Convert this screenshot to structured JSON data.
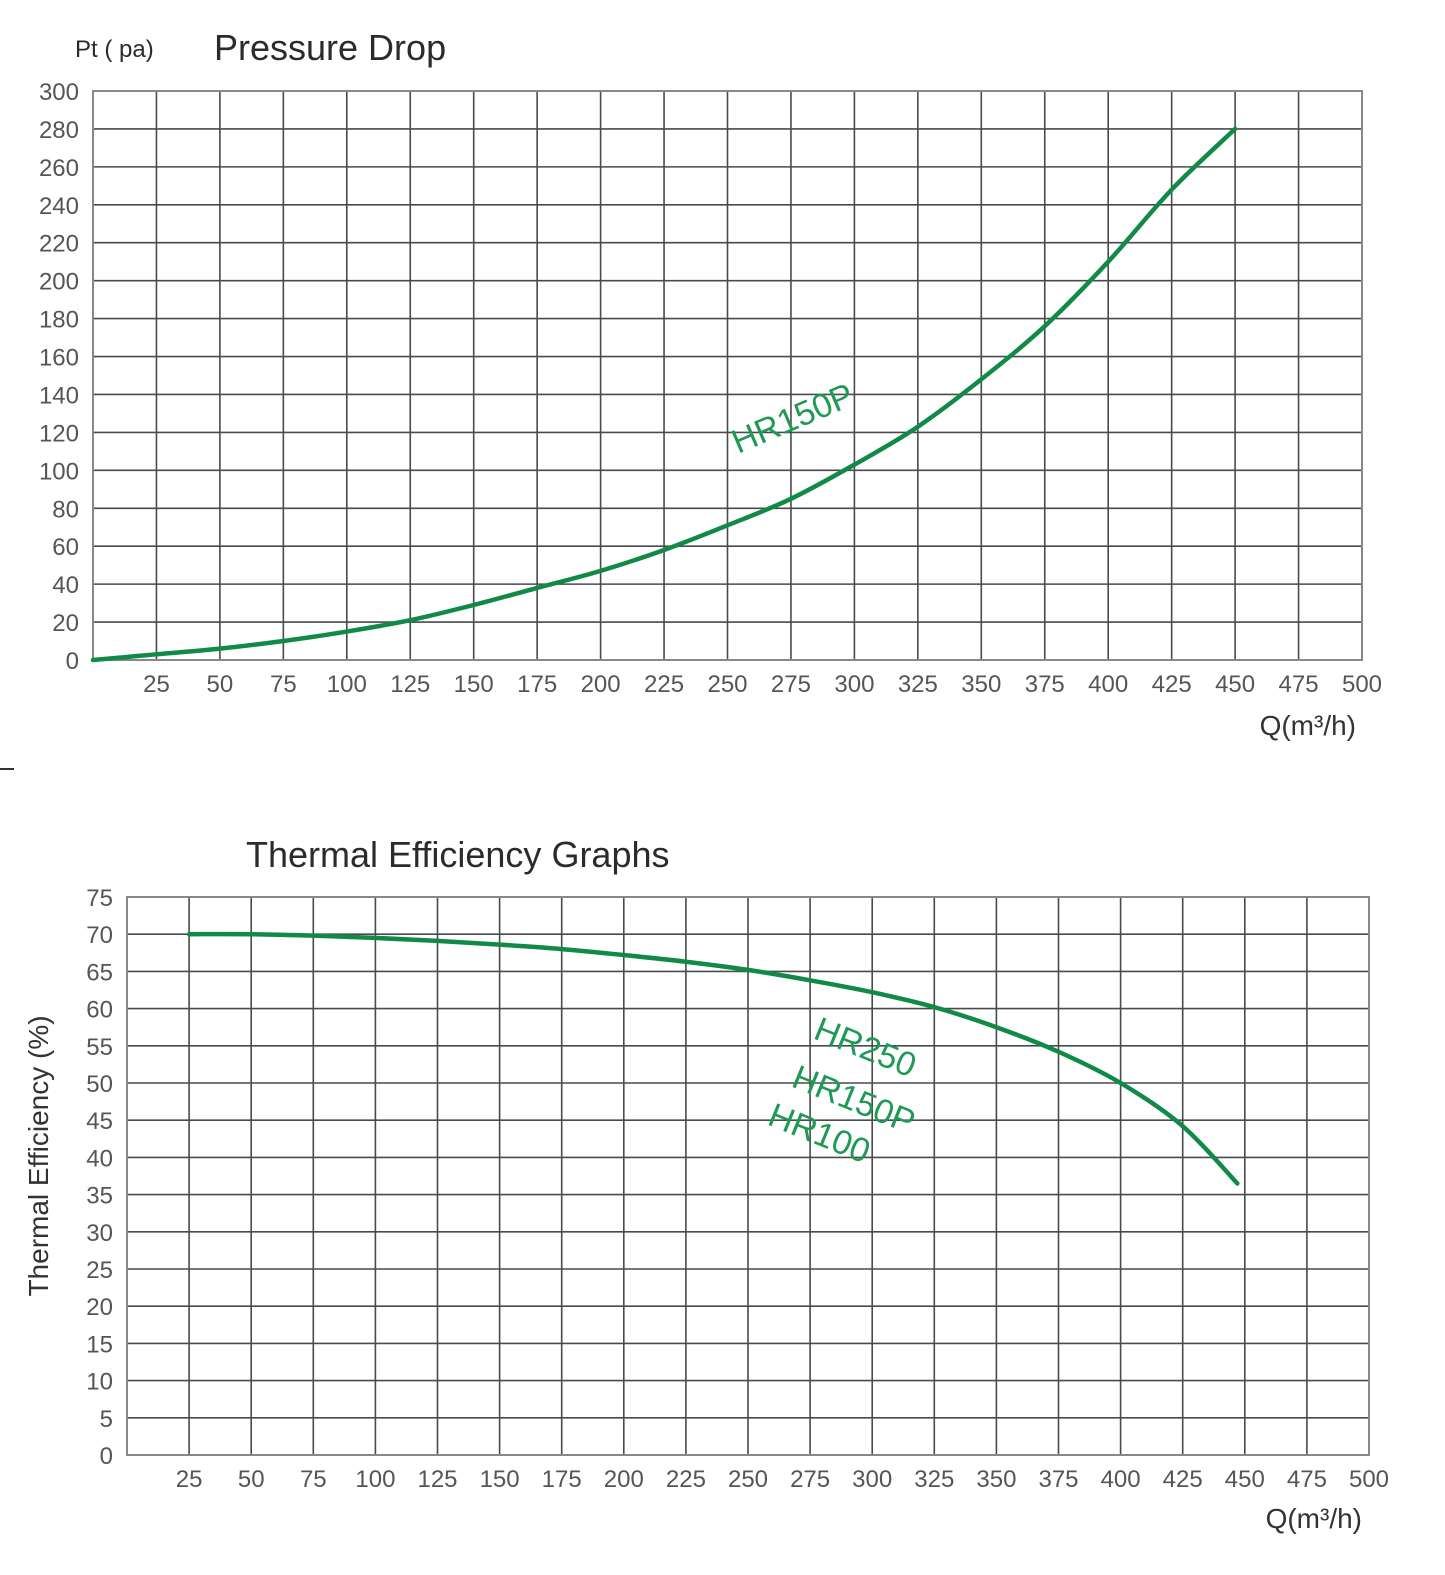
{
  "chart_data": [
    {
      "type": "line",
      "title": "Pressure Drop",
      "ylabel": "Pt ( pa)",
      "xlabel": "Q(m³/h)",
      "xlim": [
        0,
        500
      ],
      "ylim": [
        0,
        300
      ],
      "grid": true,
      "x_ticks": [
        "25",
        "50",
        "75",
        "100",
        "125",
        "150",
        "175",
        "200",
        "225",
        "250",
        "275",
        "300",
        "325",
        "350",
        "375",
        "400",
        "425",
        "450",
        "475",
        "500"
      ],
      "y_ticks": [
        "0",
        "20",
        "40",
        "60",
        "80",
        "100",
        "120",
        "140",
        "160",
        "180",
        "200",
        "220",
        "240",
        "260",
        "280",
        "300"
      ],
      "series": [
        {
          "name": "HR150P",
          "color": "#128a47",
          "x": [
            0,
            25,
            50,
            75,
            100,
            125,
            150,
            175,
            200,
            225,
            250,
            275,
            300,
            325,
            350,
            375,
            400,
            425,
            450
          ],
          "values": [
            0,
            3,
            6,
            10,
            15,
            21,
            29,
            38,
            47,
            58,
            71,
            85,
            103,
            123,
            148,
            176,
            210,
            248,
            280
          ]
        }
      ],
      "annotations": [
        {
          "text": "HR150P",
          "x": 285,
          "y": 125,
          "rotation": -22
        }
      ]
    },
    {
      "type": "line",
      "title": "Thermal Efficiency Graphs",
      "ylabel": "Thermal Efficiency (%)",
      "xlabel": "Q(m³/h)",
      "xlim": [
        0,
        500
      ],
      "ylim": [
        0,
        75
      ],
      "grid": true,
      "x_ticks": [
        "25",
        "50",
        "75",
        "100",
        "125",
        "150",
        "175",
        "200",
        "225",
        "250",
        "275",
        "300",
        "325",
        "350",
        "375",
        "400",
        "425",
        "450",
        "475",
        "500"
      ],
      "y_ticks": [
        "0",
        "5",
        "10",
        "15",
        "20",
        "25",
        "30",
        "35",
        "40",
        "45",
        "50",
        "55",
        "60",
        "65",
        "70",
        "75"
      ],
      "series": [
        {
          "name": "HR250 / HR150P / HR100",
          "color": "#128a47",
          "x": [
            25,
            50,
            75,
            100,
            125,
            150,
            175,
            200,
            225,
            250,
            275,
            300,
            325,
            350,
            375,
            400,
            425,
            447
          ],
          "values": [
            70,
            70,
            69.8,
            69.5,
            69.1,
            68.6,
            68,
            67.2,
            66.3,
            65.2,
            63.8,
            62.2,
            60.2,
            57.5,
            54.2,
            50,
            44.2,
            36.5
          ]
        }
      ],
      "annotations": [
        {
          "text": "HR250",
          "rotation": 22
        },
        {
          "text": "HR150P",
          "rotation": 22
        },
        {
          "text": "HR100",
          "rotation": 22
        }
      ]
    }
  ],
  "charts": {
    "pressure": {
      "title": "Pressure Drop",
      "unit_label": "Pt ( pa)",
      "x_axis_label": "Q(m³/h)",
      "series_label": "HR150P"
    },
    "thermal": {
      "title": "Thermal Efficiency Graphs",
      "y_axis_label": "Thermal Efficiency (%)",
      "x_axis_label": "Q(m³/h)",
      "series_labels": [
        "HR250",
        "HR150P",
        "HR100"
      ]
    }
  }
}
